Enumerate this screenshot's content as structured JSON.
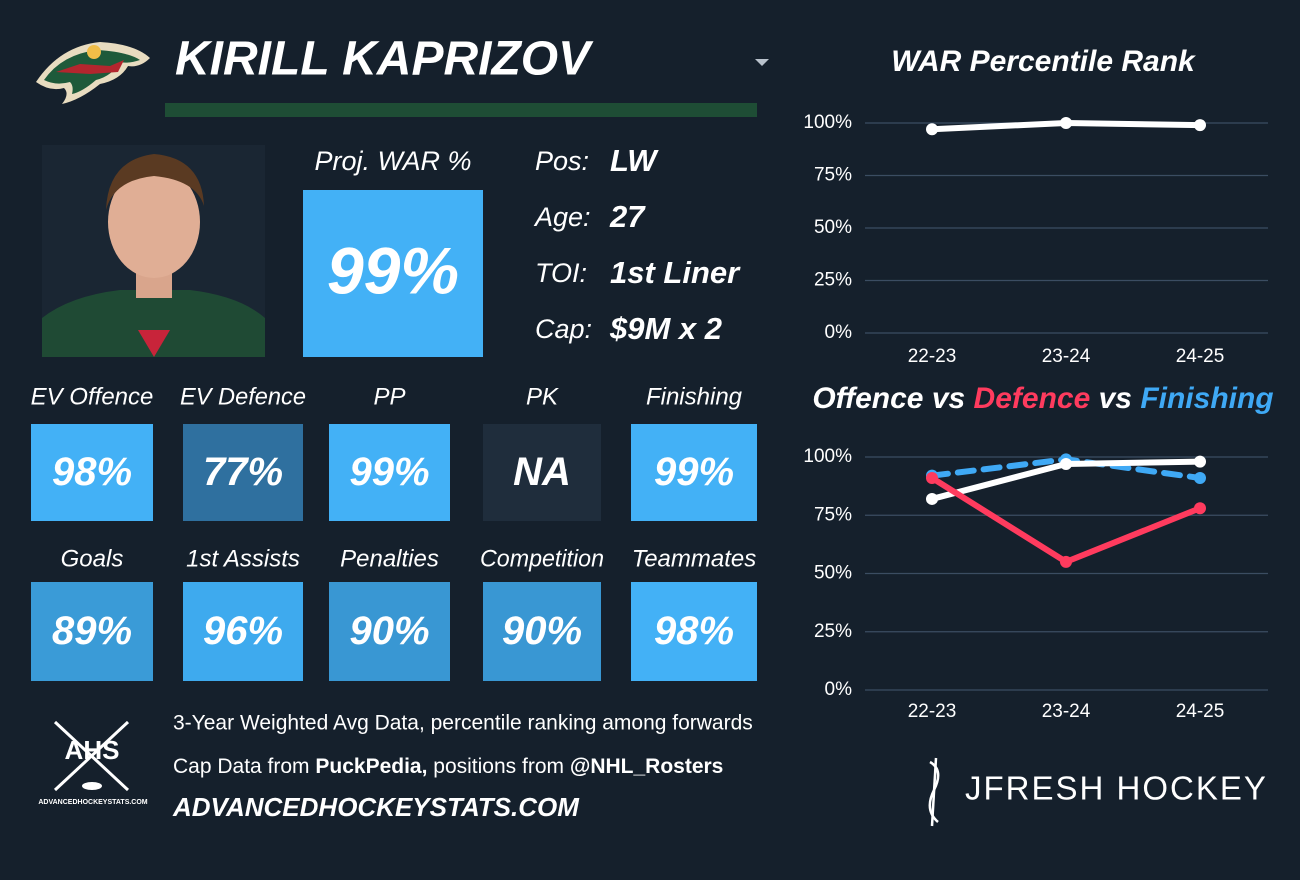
{
  "header": {
    "name": "KIRILL KAPRIZOV"
  },
  "projection": {
    "label": "Proj. WAR %",
    "value": "99%"
  },
  "info": [
    {
      "label": "Pos:",
      "value": "LW"
    },
    {
      "label": "Age:",
      "value": "27"
    },
    {
      "label": "TOI:",
      "value": "1st Liner"
    },
    {
      "label": "Cap:",
      "value": "$9M x 2"
    }
  ],
  "tiles": [
    [
      {
        "label": "EV Offence",
        "value": "98%",
        "color": "#43b1f6"
      },
      {
        "label": "EV Defence",
        "value": "77%",
        "color": "#2f709f"
      },
      {
        "label": "PP",
        "value": "99%",
        "color": "#43b1f6"
      },
      {
        "label": "PK",
        "value": "NA",
        "color": "#1f2d3c"
      },
      {
        "label": "Finishing",
        "value": "99%",
        "color": "#43b1f6"
      }
    ],
    [
      {
        "label": "Goals",
        "value": "89%",
        "color": "#3a9bd7"
      },
      {
        "label": "1st Assists",
        "value": "96%",
        "color": "#3eaaee"
      },
      {
        "label": "Penalties",
        "value": "90%",
        "color": "#3997d3"
      },
      {
        "label": "Competition",
        "value": "90%",
        "color": "#3997d3"
      },
      {
        "label": "Teammates",
        "value": "98%",
        "color": "#43b1f6"
      }
    ]
  ],
  "footer": {
    "logo": {
      "title": "AHS",
      "caption": "ADVANCEDHOCKEYSTATS.COM"
    },
    "line1": "3-Year Weighted Avg Data, percentile ranking among forwards",
    "line2": [
      {
        "text": "Cap Data from ",
        "bold": false
      },
      {
        "text": "PuckPedia,",
        "bold": true
      },
      {
        "text": " positions from ",
        "bold": false
      },
      {
        "text": "@NHL_Rosters",
        "bold": true
      }
    ],
    "site": "ADVANCEDHOCKEYSTATS.COM",
    "brand": "JFRESH HOCKEY"
  },
  "chart_data": [
    {
      "type": "line",
      "title": [
        {
          "text": "WAR Percentile Rank",
          "color": "#ffffff"
        }
      ],
      "categories": [
        "22-23",
        "23-24",
        "24-25"
      ],
      "series": [
        {
          "color": "#ffffff",
          "dashed": false,
          "values": [
            97,
            100,
            99
          ]
        }
      ],
      "ylim": [
        0,
        100
      ],
      "yticks": [
        {
          "value": 0,
          "label": "0%"
        },
        {
          "value": 25,
          "label": "25%"
        },
        {
          "value": 50,
          "label": "50%"
        },
        {
          "value": 75,
          "label": "75%"
        },
        {
          "value": 100,
          "label": "100%"
        }
      ],
      "grid": true
    },
    {
      "type": "line",
      "title": [
        {
          "text": "Offence",
          "color": "#ffffff"
        },
        {
          "text": " vs ",
          "color": "#ffffff"
        },
        {
          "text": "Defence",
          "color": "#ff3b5e"
        },
        {
          "text": " vs ",
          "color": "#ffffff"
        },
        {
          "text": "Finishing",
          "color": "#3fa9f5"
        }
      ],
      "categories": [
        "22-23",
        "23-24",
        "24-25"
      ],
      "series": [
        {
          "color": "#3fa9f5",
          "dashed": true,
          "values": [
            92,
            99,
            91
          ]
        },
        {
          "color": "#ffffff",
          "dashed": false,
          "values": [
            82,
            97,
            98
          ]
        },
        {
          "color": "#ff3b5e",
          "dashed": false,
          "values": [
            91,
            55,
            78
          ]
        }
      ],
      "ylim": [
        0,
        100
      ],
      "yticks": [
        {
          "value": 0,
          "label": "0%"
        },
        {
          "value": 25,
          "label": "25%"
        },
        {
          "value": 50,
          "label": "50%"
        },
        {
          "value": 75,
          "label": "75%"
        },
        {
          "value": 100,
          "label": "100%"
        }
      ],
      "grid": true
    }
  ]
}
